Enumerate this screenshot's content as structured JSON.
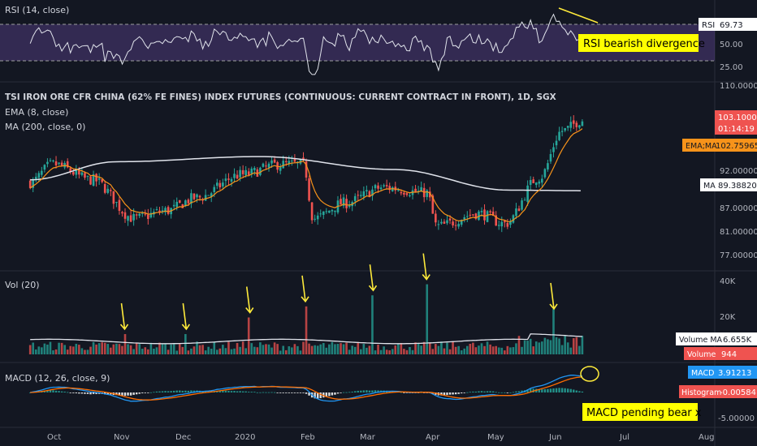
{
  "colors": {
    "background": "#131722",
    "up": "#26a69a",
    "down": "#ef5350",
    "ema": "#f7931a",
    "ma": "#e0e3eb",
    "rsi_line": "#e0e3eb",
    "rsi_band": "#7e57c2",
    "macd": "#2196f3",
    "signal": "#ff6d00",
    "annotation_bg": "#ffff00",
    "annotation_text": "#000000",
    "arrow": "#ffeb3b"
  },
  "panes": {
    "rsi": {
      "title": "RSI (14, close)",
      "tag_label": "RSI",
      "tag_value": "69.73",
      "levels": [
        "50.00",
        "25.00"
      ],
      "annotation": "RSI bearish divergence"
    },
    "price": {
      "title": "TSI IRON ORE CFR CHINA (62% FE FINES) INDEX FUTURES (CONTINUOUS: CURRENT CONTRACT IN FRONT), 1D, SGX",
      "ema_label": "EMA (8, close)",
      "ma_label": "MA (200, close, 0)",
      "last_price": "103.10000",
      "countdown": "01:14:19",
      "ema_ma_tag": "EMA;MA",
      "ema_value": "102.75965",
      "ma_tag": "MA",
      "ma_value": "89.38820",
      "axis_labels": [
        "110.00000",
        "92.00000",
        "87.00000",
        "81.00000",
        "77.00000"
      ]
    },
    "volume": {
      "title": "Vol (20)",
      "axis_labels": [
        "40K",
        "20K"
      ],
      "vol_ma_tag": "Volume MA",
      "vol_ma_value": "6.655K",
      "vol_tag": "Volume",
      "vol_value": "944"
    },
    "macd": {
      "title": "MACD (12, 26, close, 9)",
      "macd_tag": "MACD",
      "macd_value": "3.91213",
      "hist_tag": "Histogram",
      "hist_value": "-0.00584",
      "axis_label": "-5.00000",
      "annotation": "MACD pending bear x"
    }
  },
  "x_axis": [
    "Oct",
    "Nov",
    "Dec",
    "2020",
    "Feb",
    "Mar",
    "Apr",
    "May",
    "Jun",
    "Jul",
    "Aug"
  ],
  "chart_data": {
    "type": "candlestick",
    "title": "TSI IRON ORE CFR CHINA (62% FE FINES) INDEX FUTURES (CONTINUOUS: CURRENT CONTRACT IN FRONT), 1D, SGX",
    "x_labels": [
      "Oct",
      "Nov",
      "Dec",
      "2020",
      "Feb",
      "Mar",
      "Apr",
      "May",
      "Jun",
      "Jul",
      "Aug"
    ],
    "price_key_points": [
      {
        "x": "2019-09-20",
        "close": 91
      },
      {
        "x": "2019-10-01",
        "close": 94.5
      },
      {
        "x": "2019-10-20",
        "close": 91.5
      },
      {
        "x": "2019-11-10",
        "close": 84
      },
      {
        "x": "2019-11-25",
        "close": 85.5
      },
      {
        "x": "2019-12-10",
        "close": 88
      },
      {
        "x": "2020-01-01",
        "close": 92.5
      },
      {
        "x": "2020-01-20",
        "close": 94.5
      },
      {
        "x": "2020-01-31",
        "close": 94.5
      },
      {
        "x": "2020-02-05",
        "close": 84
      },
      {
        "x": "2020-02-20",
        "close": 87
      },
      {
        "x": "2020-03-10",
        "close": 90
      },
      {
        "x": "2020-03-31",
        "close": 89
      },
      {
        "x": "2020-04-05",
        "close": 82.5
      },
      {
        "x": "2020-04-25",
        "close": 85
      },
      {
        "x": "2020-05-08",
        "close": 83
      },
      {
        "x": "2020-05-25",
        "close": 92
      },
      {
        "x": "2020-06-05",
        "close": 101
      },
      {
        "x": "2020-06-15",
        "close": 103.1
      }
    ],
    "ma200_key_points": [
      {
        "x": "2019-09-20",
        "close": 91.5
      },
      {
        "x": "2019-11-01",
        "close": 95
      },
      {
        "x": "2020-01-10",
        "close": 96
      },
      {
        "x": "2020-03-15",
        "close": 93.5
      },
      {
        "x": "2020-05-10",
        "close": 89.5
      },
      {
        "x": "2020-06-15",
        "close": 89.39
      }
    ],
    "volume_spikes_k": [
      {
        "x": "2019-11-05",
        "volume": 11
      },
      {
        "x": "2019-12-05",
        "volume": 11
      },
      {
        "x": "2020-01-05",
        "volume": 20
      },
      {
        "x": "2020-02-01",
        "volume": 26
      },
      {
        "x": "2020-03-05",
        "volume": 32
      },
      {
        "x": "2020-03-31",
        "volume": 38
      },
      {
        "x": "2020-06-01",
        "volume": 22
      }
    ],
    "last_values": {
      "price": 103.1,
      "ema8": 102.75965,
      "ma200": 89.3882,
      "rsi": 69.73,
      "volume": 944,
      "volume_ma": 6655,
      "macd": 3.91213,
      "histogram": -0.00584
    }
  }
}
